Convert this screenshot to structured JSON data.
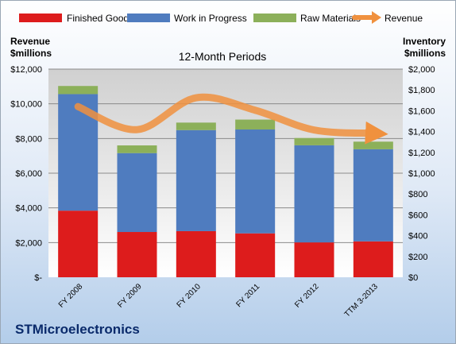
{
  "chart_data": {
    "type": "bar",
    "subtitle": "12-Month Periods",
    "company": "STMicroelectronics",
    "left_axis": {
      "title_line1": "Revenue",
      "title_line2": "$millions",
      "ylim": [
        0,
        12000
      ],
      "tick_labels": [
        "$-",
        "$2,000",
        "$4,000",
        "$6,000",
        "$8,000",
        "$10,000",
        "$12,000"
      ]
    },
    "right_axis": {
      "title_line1": "Inventory",
      "title_line2": "$millions",
      "ylim": [
        0,
        2000
      ],
      "tick_labels": [
        "$0",
        "$200",
        "$400",
        "$600",
        "$800",
        "$1,000",
        "$1,200",
        "$1,400",
        "$1,600",
        "$1,800",
        "$2,000"
      ]
    },
    "categories": [
      "FY 2008",
      "FY 2009",
      "FY 2010",
      "FY 2011",
      "FY 2012",
      "TTM 3-2013"
    ],
    "series": [
      {
        "name": "Finished Goods",
        "kind": "bar",
        "axis": "right",
        "color": "#dd1c1c",
        "values": [
          640,
          435,
          443,
          422,
          335,
          345
        ]
      },
      {
        "name": "Work in Progress",
        "kind": "bar",
        "axis": "right",
        "color": "#4f7cbf",
        "values": [
          1120,
          758,
          971,
          998,
          933,
          885
        ]
      },
      {
        "name": "Raw Materials",
        "kind": "bar",
        "axis": "right",
        "color": "#8cb05a",
        "values": [
          78,
          74,
          72,
          95,
          70,
          73
        ]
      },
      {
        "name": "Revenue",
        "kind": "line",
        "axis": "left",
        "color": "#f0913e",
        "values": [
          9840,
          8510,
          10350,
          9630,
          8490,
          8300
        ]
      }
    ],
    "legend_position": "top",
    "grid": true
  }
}
